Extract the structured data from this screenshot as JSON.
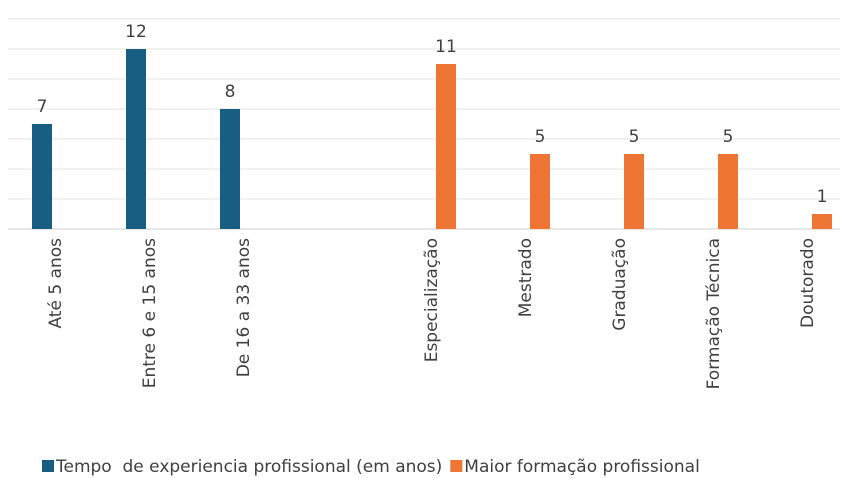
{
  "chart_data": {
    "type": "bar",
    "categories": [
      "Até 5 anos",
      "Entre 6 e 15 anos",
      "De 16 a 33 anos",
      null,
      "Especialização",
      "Mestrado",
      "Graduação",
      "Formação Técnica",
      "Doutorado"
    ],
    "series": [
      {
        "name": "Tempo  de experiencia profissional (em anos)",
        "color": "#175e82",
        "values": [
          7,
          12,
          8,
          null,
          null,
          null,
          null,
          null,
          null
        ]
      },
      {
        "name": "Maior formação profissional",
        "color": "#ee7533",
        "values": [
          null,
          null,
          null,
          null,
          11,
          5,
          5,
          5,
          1
        ]
      }
    ],
    "ylim": [
      0,
      14
    ],
    "yticks": [
      0,
      2,
      4,
      6,
      8,
      10,
      12,
      14
    ],
    "grid": true,
    "legend": "bottom"
  }
}
